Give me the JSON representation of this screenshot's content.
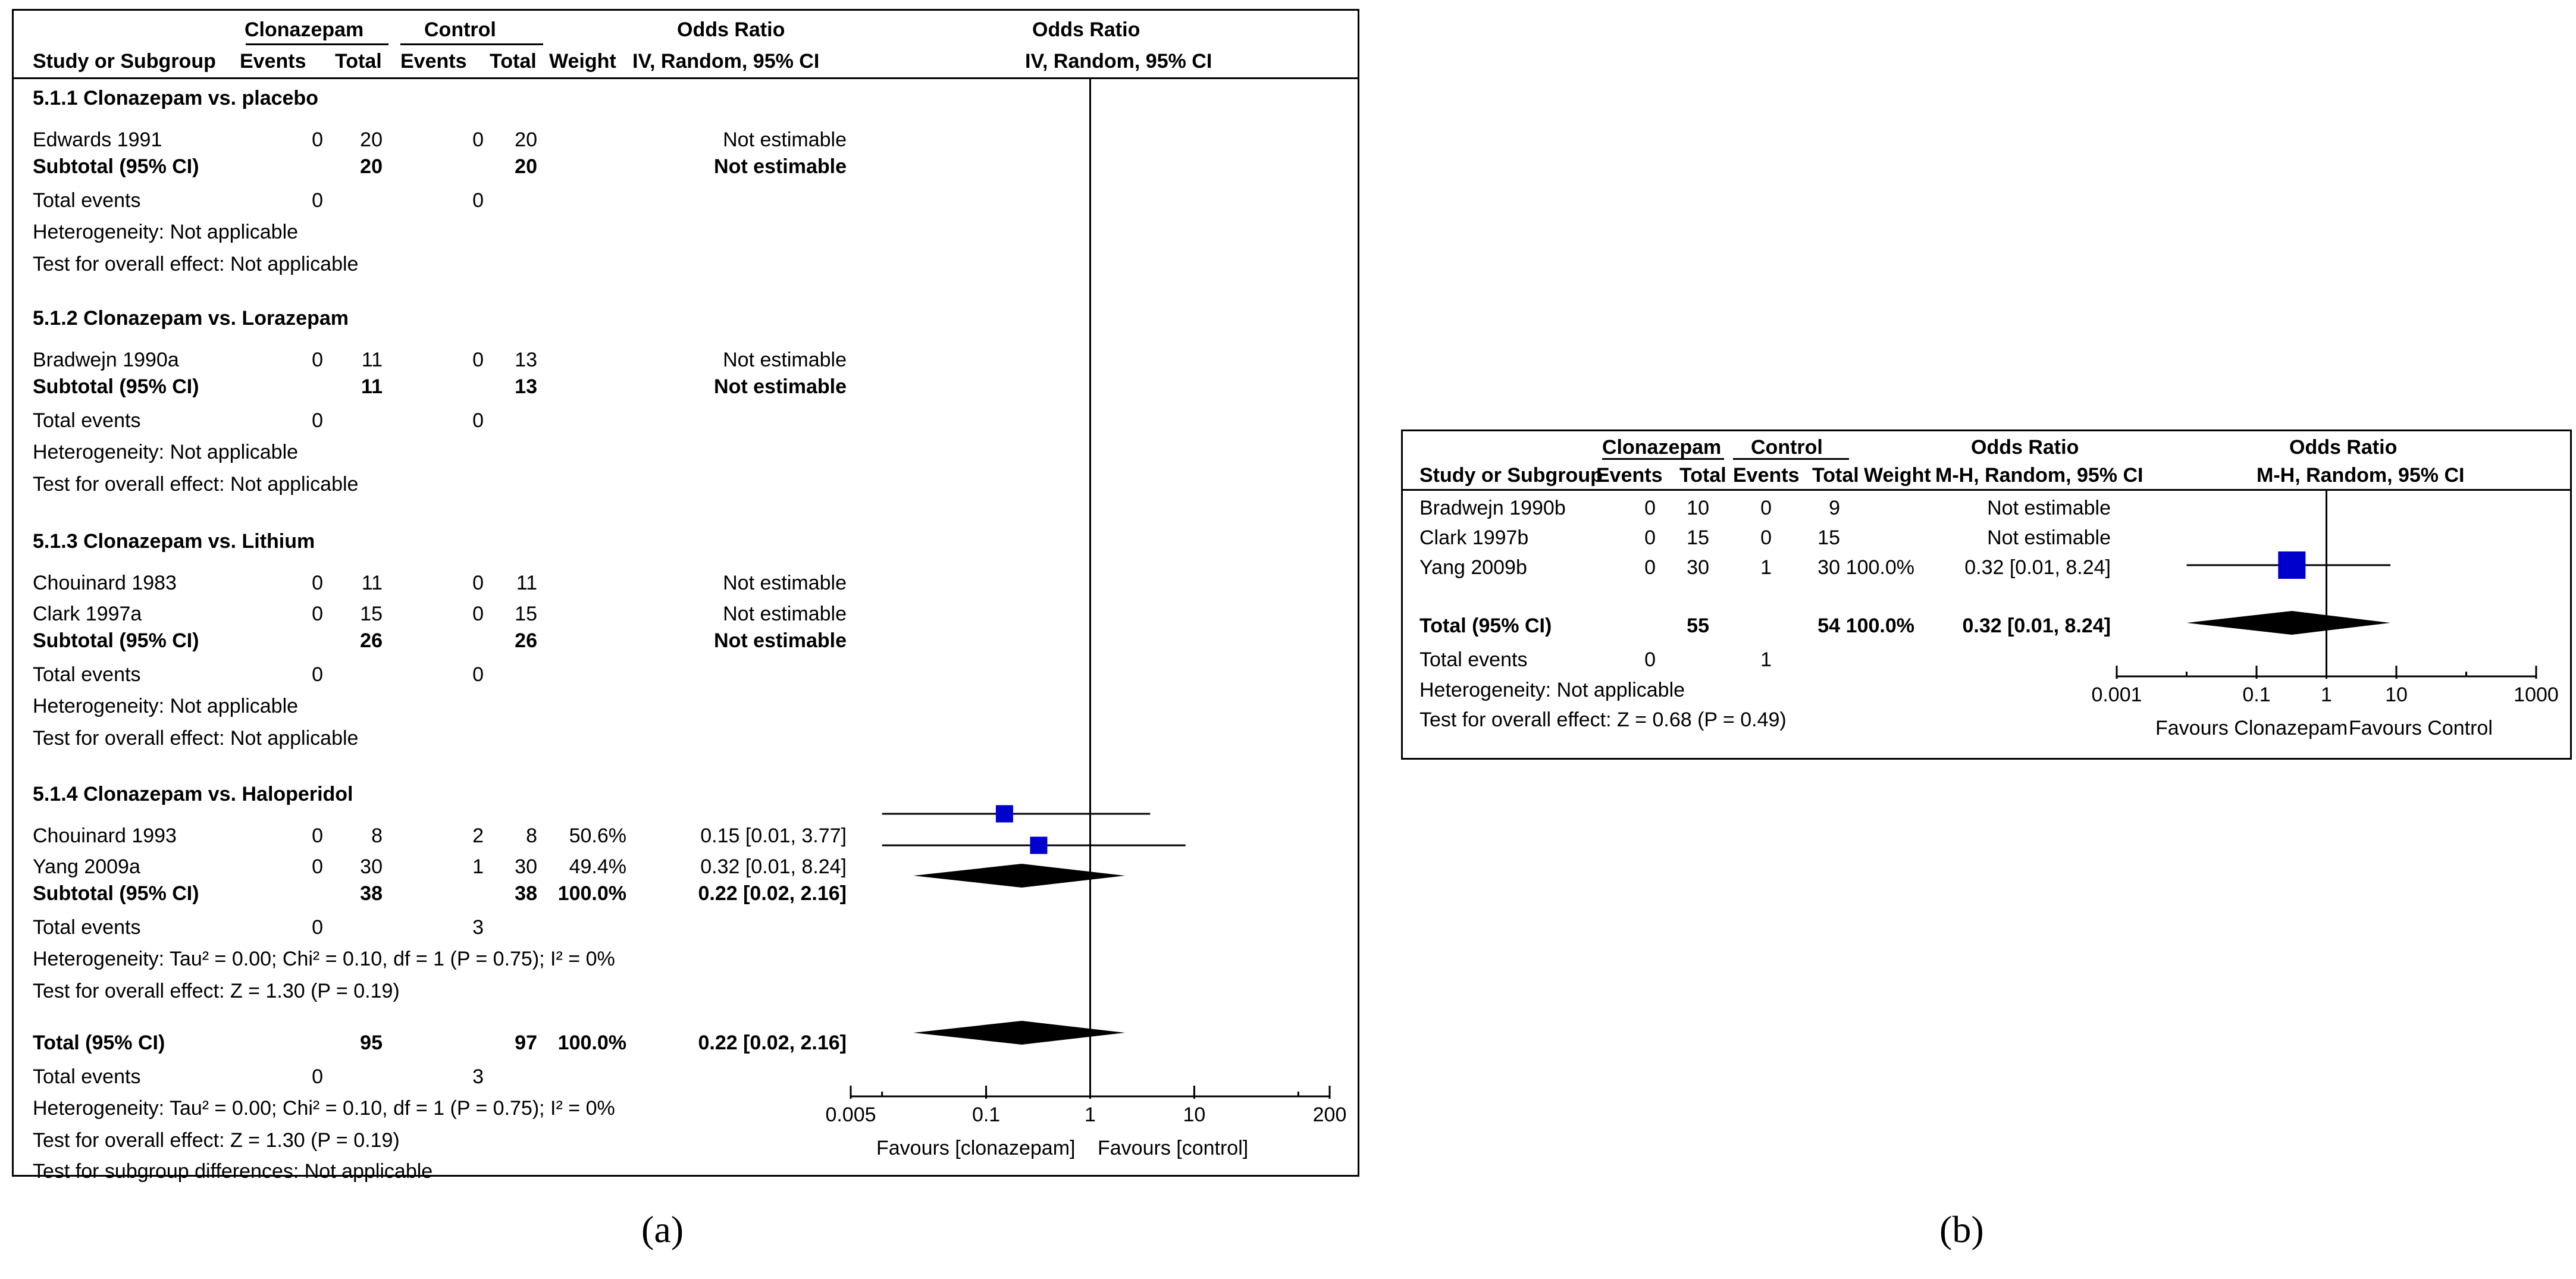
{
  "panel_a": {
    "headers": {
      "group1": "Clonazepam",
      "group2": "Control",
      "or_table": "Odds Ratio",
      "or_plot": "Odds Ratio",
      "study": "Study or Subgroup",
      "events1": "Events",
      "total1": "Total",
      "events2": "Events",
      "total2": "Total",
      "weight": "Weight",
      "method_table": "IV, Random, 95% CI",
      "method_plot": "IV, Random, 95% CI"
    },
    "subgroups": [
      {
        "title": "5.1.1 Clonazepam vs. placebo",
        "studies": [
          {
            "name": "Edwards 1991",
            "e1": "0",
            "t1": "20",
            "e2": "0",
            "t2": "20",
            "weight": "",
            "ci": "Not estimable"
          }
        ],
        "subtotal": {
          "label": "Subtotal (95% CI)",
          "t1": "20",
          "t2": "20",
          "weight": "",
          "ci": "Not estimable"
        },
        "total_events": {
          "label": "Total events",
          "e1": "0",
          "e2": "0"
        },
        "heterogeneity": "Heterogeneity: Not applicable",
        "overall": "Test for overall effect: Not applicable"
      },
      {
        "title": "5.1.2 Clonazepam vs. Lorazepam",
        "studies": [
          {
            "name": "Bradwejn 1990a",
            "e1": "0",
            "t1": "11",
            "e2": "0",
            "t2": "13",
            "weight": "",
            "ci": "Not estimable"
          }
        ],
        "subtotal": {
          "label": "Subtotal (95% CI)",
          "t1": "11",
          "t2": "13",
          "weight": "",
          "ci": "Not estimable"
        },
        "total_events": {
          "label": "Total events",
          "e1": "0",
          "e2": "0"
        },
        "heterogeneity": "Heterogeneity: Not applicable",
        "overall": "Test for overall effect: Not applicable"
      },
      {
        "title": "5.1.3 Clonazepam vs. Lithium",
        "studies": [
          {
            "name": "Chouinard 1983",
            "e1": "0",
            "t1": "11",
            "e2": "0",
            "t2": "11",
            "weight": "",
            "ci": "Not estimable"
          },
          {
            "name": "Clark 1997a",
            "e1": "0",
            "t1": "15",
            "e2": "0",
            "t2": "15",
            "weight": "",
            "ci": "Not estimable"
          }
        ],
        "subtotal": {
          "label": "Subtotal (95% CI)",
          "t1": "26",
          "t2": "26",
          "weight": "",
          "ci": "Not estimable"
        },
        "total_events": {
          "label": "Total events",
          "e1": "0",
          "e2": "0"
        },
        "heterogeneity": "Heterogeneity: Not applicable",
        "overall": "Test for overall effect: Not applicable"
      },
      {
        "title": "5.1.4 Clonazepam vs. Haloperidol",
        "studies": [
          {
            "name": "Chouinard 1993",
            "e1": "0",
            "t1": "8",
            "e2": "2",
            "t2": "8",
            "weight": "50.6%",
            "ci": "0.15 [0.01, 3.77]"
          },
          {
            "name": "Yang 2009a",
            "e1": "0",
            "t1": "30",
            "e2": "1",
            "t2": "30",
            "weight": "49.4%",
            "ci": "0.32 [0.01, 8.24]"
          }
        ],
        "subtotal": {
          "label": "Subtotal (95% CI)",
          "t1": "38",
          "t2": "38",
          "weight": "100.0%",
          "ci": "0.22 [0.02, 2.16]"
        },
        "total_events": {
          "label": "Total events",
          "e1": "0",
          "e2": "3"
        },
        "heterogeneity": "Heterogeneity: Tau² = 0.00; Chi² = 0.10, df = 1 (P = 0.75); I² = 0%",
        "overall": "Test for overall effect: Z = 1.30 (P = 0.19)"
      }
    ],
    "total": {
      "label": "Total (95% CI)",
      "t1": "95",
      "t2": "97",
      "weight": "100.0%",
      "ci": "0.22 [0.02, 2.16]"
    },
    "total_events": {
      "label": "Total events",
      "e1": "0",
      "e2": "3"
    },
    "heterogeneity": "Heterogeneity: Tau² = 0.00; Chi² = 0.10, df = 1 (P = 0.75); I² = 0%",
    "overall": "Test for overall effect: Z = 1.30 (P = 0.19)",
    "subgroup_diff": "Test for subgroup differences: Not applicable",
    "axis_ticks": [
      "0.005",
      "0.1",
      "1",
      "10",
      "200"
    ],
    "favours_left": "Favours [clonazepam]",
    "favours_right": "Favours [control]",
    "caption": "(a)"
  },
  "panel_b": {
    "headers": {
      "group1": "Clonazepam",
      "group2": "Control",
      "or_table": "Odds Ratio",
      "or_plot": "Odds Ratio",
      "study": "Study or Subgroup",
      "events1": "Events",
      "total1": "Total",
      "events2": "Events",
      "total2": "Total",
      "weight": "Weight",
      "method_table": "M-H, Random, 95% CI",
      "method_plot": "M-H, Random, 95% CI"
    },
    "studies": [
      {
        "name": "Bradwejn 1990b",
        "e1": "0",
        "t1": "10",
        "e2": "0",
        "t2": "9",
        "weight": "",
        "ci": "Not estimable"
      },
      {
        "name": "Clark 1997b",
        "e1": "0",
        "t1": "15",
        "e2": "0",
        "t2": "15",
        "weight": "",
        "ci": "Not estimable"
      },
      {
        "name": "Yang 2009b",
        "e1": "0",
        "t1": "30",
        "e2": "1",
        "t2": "30",
        "weight": "100.0%",
        "ci": "0.32 [0.01, 8.24]"
      }
    ],
    "total": {
      "label": "Total (95% CI)",
      "t1": "55",
      "t2": "54",
      "weight": "100.0%",
      "ci": "0.32 [0.01, 8.24]"
    },
    "total_events": {
      "label": "Total events",
      "e1": "0",
      "e2": "1"
    },
    "heterogeneity": "Heterogeneity: Not applicable",
    "overall": "Test for overall effect: Z = 0.68 (P = 0.49)",
    "axis_ticks": [
      "0.001",
      "0.1",
      "1",
      "10",
      "1000"
    ],
    "favours_left": "Favours Clonazepam",
    "favours_right": "Favours Control",
    "caption": "(b)"
  },
  "chart_data": [
    {
      "type": "forest",
      "scale": "log",
      "xlim": [
        0.005,
        200
      ],
      "xticks": [
        0.005,
        0.1,
        1,
        10,
        200
      ],
      "reference_line": 1,
      "marker_color": "#0000cc",
      "estimates": [
        {
          "study": "Chouinard 1993",
          "or": 0.15,
          "lo": 0.01,
          "hi": 3.77,
          "weight": 50.6
        },
        {
          "study": "Yang 2009a",
          "or": 0.32,
          "lo": 0.01,
          "hi": 8.24,
          "weight": 49.4
        }
      ],
      "pooled": [
        {
          "label": "Subtotal (95% CI)",
          "or": 0.22,
          "lo": 0.02,
          "hi": 2.16
        },
        {
          "label": "Total (95% CI)",
          "or": 0.22,
          "lo": 0.02,
          "hi": 2.16
        }
      ]
    },
    {
      "type": "forest",
      "scale": "log",
      "xlim": [
        0.001,
        1000
      ],
      "xticks": [
        0.001,
        0.1,
        1,
        10,
        1000
      ],
      "reference_line": 1,
      "marker_color": "#0000cc",
      "estimates": [
        {
          "study": "Yang 2009b",
          "or": 0.32,
          "lo": 0.01,
          "hi": 8.24,
          "weight": 100.0
        }
      ],
      "pooled": [
        {
          "label": "Total (95% CI)",
          "or": 0.32,
          "lo": 0.01,
          "hi": 8.24
        }
      ]
    }
  ]
}
